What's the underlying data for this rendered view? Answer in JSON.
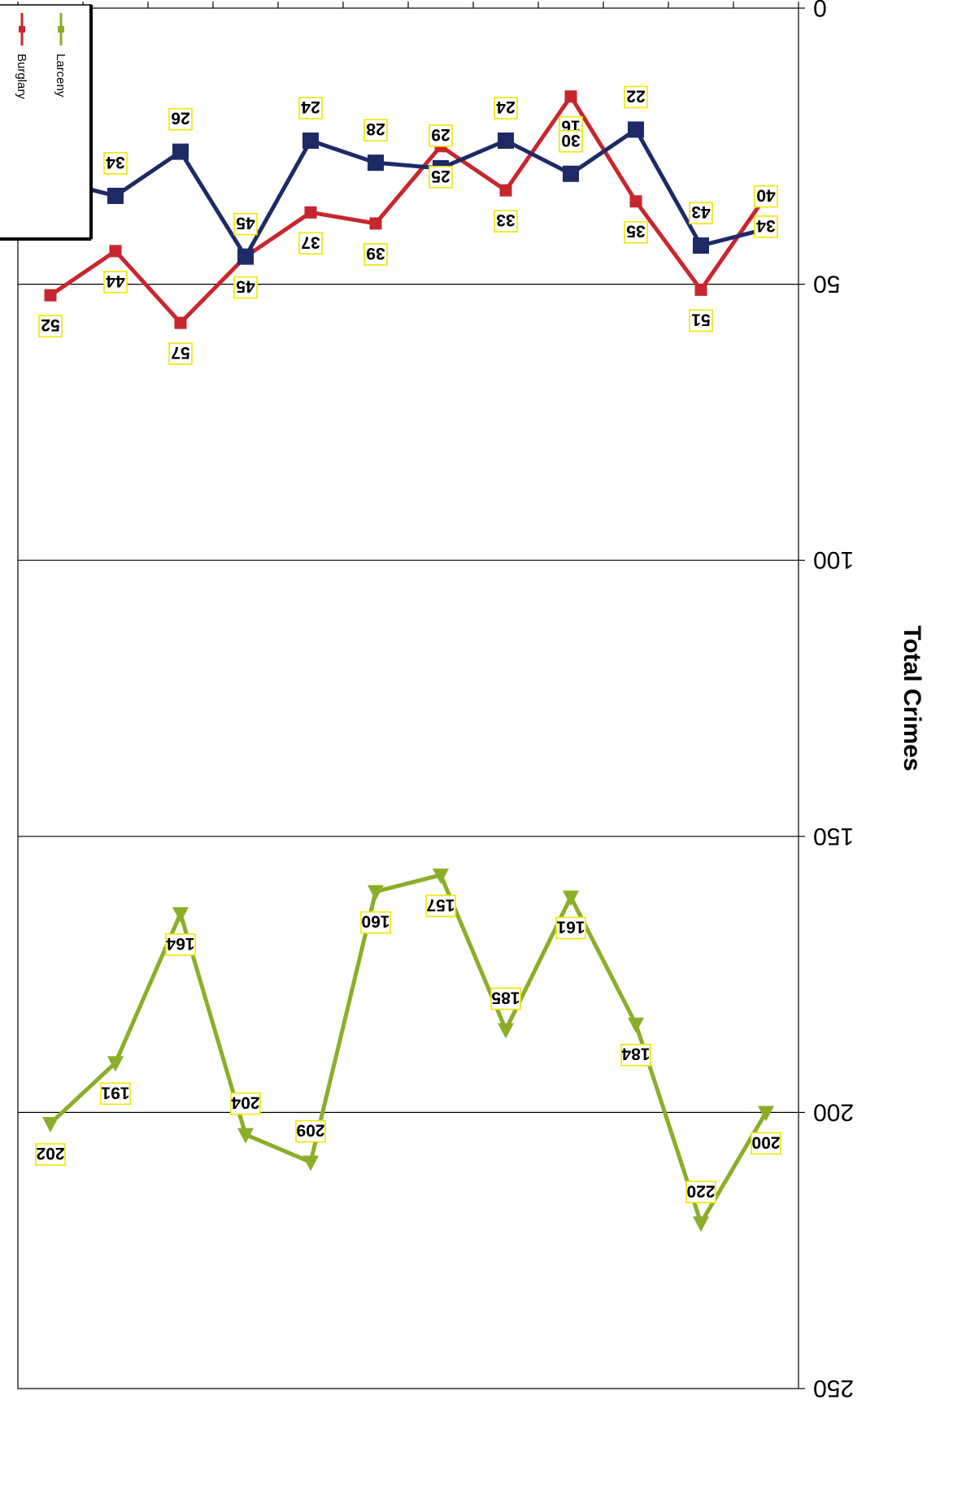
{
  "chart_data": {
    "type": "line",
    "ylabel": "Total Crimes",
    "ylim": [
      0,
      250
    ],
    "yticks": [
      0,
      50,
      100,
      150,
      200,
      250
    ],
    "grid": true,
    "legend": "top-right",
    "points": 12,
    "series": [
      {
        "name": "Burglary",
        "color": "#c8262e",
        "marker": "square",
        "values": [
          34,
          51,
          35,
          16,
          33,
          25,
          39,
          37,
          45,
          57,
          44,
          52
        ]
      },
      {
        "name": "Larceny",
        "color": "#8aae28",
        "marker": "triangle",
        "values": [
          200,
          220,
          184,
          161,
          185,
          157,
          160,
          209,
          204,
          164,
          191,
          202
        ]
      },
      {
        "color": "#1d2a66",
        "marker": "square",
        "values": [
          40,
          43,
          22,
          30,
          24,
          29,
          28,
          24,
          45,
          26,
          34,
          31
        ]
      }
    ]
  }
}
